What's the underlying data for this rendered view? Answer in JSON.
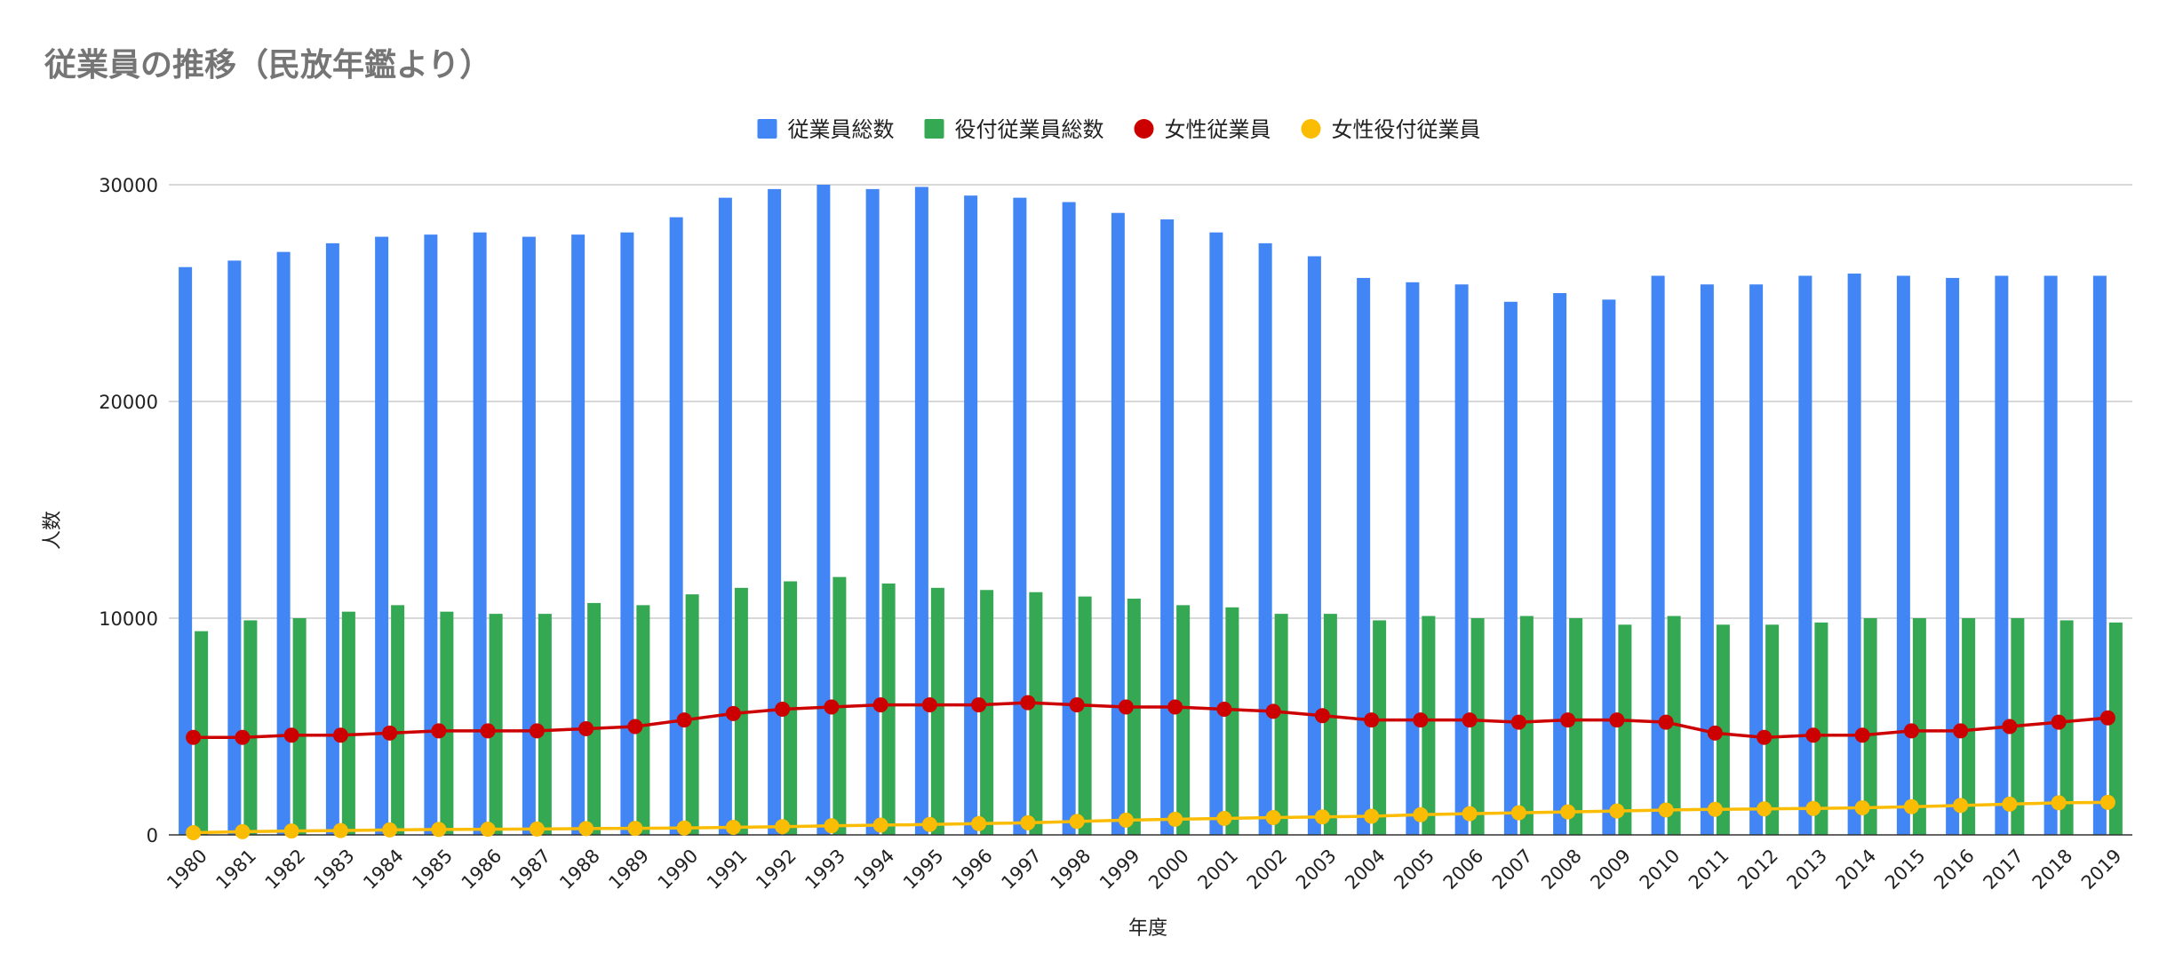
{
  "chart_data": {
    "type": "bar",
    "title": "従業員の推移（民放年鑑より）",
    "xlabel": "年度",
    "ylabel": "人数",
    "ylim": [
      0,
      30000
    ],
    "yticks": [
      0,
      10000,
      20000,
      30000
    ],
    "grid": true,
    "legend_position": "top",
    "categories": [
      "1980",
      "1981",
      "1982",
      "1983",
      "1984",
      "1985",
      "1986",
      "1987",
      "1988",
      "1989",
      "1990",
      "1991",
      "1992",
      "1993",
      "1994",
      "1995",
      "1996",
      "1997",
      "1998",
      "1999",
      "2000",
      "2001",
      "2002",
      "2003",
      "2004",
      "2005",
      "2006",
      "2007",
      "2008",
      "2009",
      "2010",
      "2011",
      "2012",
      "2013",
      "2014",
      "2015",
      "2016",
      "2017",
      "2018",
      "2019"
    ],
    "series": [
      {
        "name": "従業員総数",
        "type": "bar",
        "color": "#4285f4",
        "values": [
          26200,
          26500,
          26900,
          27300,
          27600,
          27700,
          27800,
          27600,
          27700,
          27800,
          28500,
          29400,
          29800,
          30000,
          29800,
          29900,
          29500,
          29400,
          29200,
          28700,
          28400,
          27800,
          27300,
          26700,
          25700,
          25500,
          25400,
          24600,
          25000,
          24700,
          25800,
          25400,
          25400,
          25800,
          25900,
          25800,
          25700,
          25800,
          25800,
          25800
        ]
      },
      {
        "name": "役付従業員総数",
        "type": "bar",
        "color": "#34a853",
        "values": [
          9400,
          9900,
          10000,
          10300,
          10600,
          10300,
          10200,
          10200,
          10700,
          10600,
          11100,
          11400,
          11700,
          11900,
          11600,
          11400,
          11300,
          11200,
          11000,
          10900,
          10600,
          10500,
          10200,
          10200,
          9900,
          10100,
          10000,
          10100,
          10000,
          9700,
          10100,
          9700,
          9700,
          9800,
          10000,
          10000,
          10000,
          10000,
          9900,
          9800
        ]
      },
      {
        "name": "女性従業員",
        "type": "line",
        "color": "#cc0000",
        "values": [
          4500,
          4500,
          4600,
          4600,
          4700,
          4800,
          4800,
          4800,
          4900,
          5000,
          5300,
          5600,
          5800,
          5900,
          6000,
          6000,
          6000,
          6100,
          6000,
          5900,
          5900,
          5800,
          5700,
          5500,
          5300,
          5300,
          5300,
          5200,
          5300,
          5300,
          5200,
          4700,
          4500,
          4600,
          4600,
          4800,
          4800,
          5000,
          5200,
          5400
        ]
      },
      {
        "name": "女性役付従業員",
        "type": "line",
        "color": "#fbbc04",
        "values": [
          100,
          150,
          180,
          200,
          230,
          250,
          260,
          270,
          290,
          300,
          320,
          350,
          380,
          420,
          450,
          480,
          520,
          560,
          620,
          680,
          720,
          760,
          800,
          830,
          860,
          930,
          980,
          1020,
          1060,
          1100,
          1150,
          1180,
          1200,
          1220,
          1250,
          1300,
          1360,
          1420,
          1480,
          1500
        ]
      }
    ]
  }
}
